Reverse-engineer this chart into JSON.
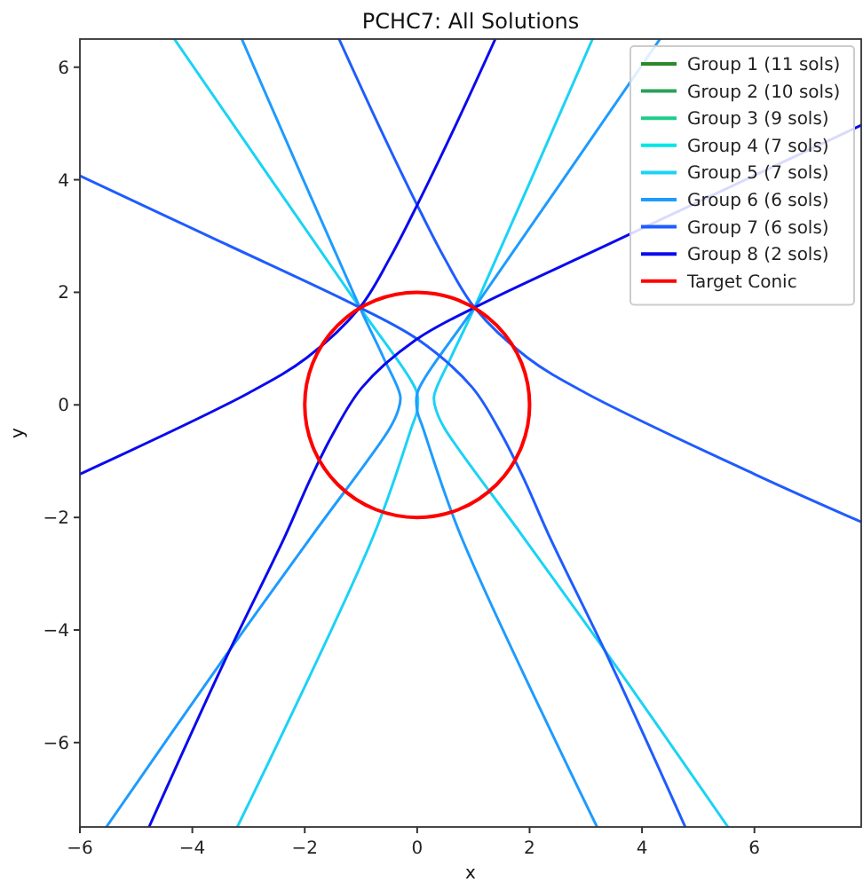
{
  "chart_data": {
    "type": "line",
    "title": "PCHC7: All Solutions",
    "xlabel": "x",
    "ylabel": "y",
    "xlim": [
      -6,
      7.9
    ],
    "ylim": [
      -7.5,
      6.5
    ],
    "xticks": [
      {
        "value": -6,
        "label": "−6"
      },
      {
        "value": -4,
        "label": "−4"
      },
      {
        "value": -2,
        "label": "−2"
      },
      0,
      2,
      4,
      6
    ],
    "yticks": [
      {
        "value": -6,
        "label": "−6"
      },
      {
        "value": -4,
        "label": "−4"
      },
      {
        "value": -2,
        "label": "−2"
      },
      0,
      2,
      4,
      6
    ],
    "legend": "top right",
    "series": [
      {
        "name": "Group 1 (11 sols)",
        "color": "#2a8a2a"
      },
      {
        "name": "Group 2 (10 sols)",
        "color": "#2ca05a"
      },
      {
        "name": "Group 3 (9 sols)",
        "color": "#1fcc8a"
      },
      {
        "name": "Group 4 (7 sols)",
        "color": "#00e6e6"
      },
      {
        "name": "Group 5 (7 sols)",
        "color": "#1ad3f5",
        "x": [
          3.12,
          1.02,
          0.6,
          0.3,
          0.34,
          0.49,
          1.86,
          3.48,
          5.53
        ],
        "values": [
          6.5,
          1.73,
          0.84,
          0.15,
          -0.1,
          -0.42,
          -2.31,
          -4.56,
          -7.5
        ]
      },
      {
        "color": "#1ad3f5",
        "x": [
          -4.32,
          -1.02,
          -0.15,
          0,
          0,
          -0.1,
          -0.77,
          -3.2
        ],
        "values": [
          6.5,
          1.73,
          0.5,
          0.2,
          -0.1,
          -0.4,
          -2.31,
          -7.5
        ]
      },
      {
        "name": "Group 6 (6 sols)",
        "color": "#1e9bff",
        "x": [
          -3.12,
          -1.02,
          -0.6,
          -0.3,
          -0.34,
          -0.49,
          -1.86,
          -3.48,
          -5.53
        ],
        "values": [
          6.5,
          1.73,
          0.84,
          0.15,
          -0.1,
          -0.42,
          -2.31,
          -4.56,
          -7.5
        ]
      },
      {
        "color": "#1e9bff",
        "x": [
          4.32,
          1.02,
          0.15,
          0,
          0,
          0.1,
          0.77,
          3.2
        ],
        "values": [
          6.5,
          1.73,
          0.5,
          0.2,
          -0.1,
          -0.4,
          -2.31,
          -7.5
        ]
      },
      {
        "name": "Group 7 (6 sols)",
        "color": "#1f5cff",
        "x": [
          -6,
          -3.5,
          -1.02,
          0.03,
          0.98,
          1.5,
          1.92,
          2.34,
          3.43,
          4.77
        ],
        "values": [
          4.07,
          2.9,
          1.73,
          1.15,
          0.31,
          -0.52,
          -1.36,
          -2.31,
          -4.56,
          -7.5
        ]
      },
      {
        "color": "#1f5cff",
        "x": [
          7.9,
          6,
          3,
          1.96,
          1.02,
          0.49,
          0,
          -0.7,
          -1.39
        ],
        "values": [
          -2.08,
          -1.23,
          0.21,
          0.84,
          1.73,
          2.6,
          3.55,
          5,
          6.5
        ]
      },
      {
        "name": "Group 8 (2 sols)",
        "color": "#0a0aee",
        "x": [
          -6,
          -3,
          -1.96,
          -1.02,
          -0.49,
          0,
          0.7,
          1.39
        ],
        "values": [
          -1.23,
          0.21,
          0.84,
          1.73,
          2.6,
          3.55,
          5,
          6.5
        ]
      },
      {
        "color": "#0a0aee",
        "x": [
          7.9,
          3.5,
          1.02,
          -0.03,
          -0.98,
          -1.5,
          -1.92,
          -2.34,
          -3.43,
          -4.77
        ],
        "values": [
          4.97,
          2.9,
          1.73,
          1.15,
          0.31,
          -0.52,
          -1.36,
          -2.31,
          -4.56,
          -7.5
        ]
      },
      {
        "name": "Target Conic",
        "color": "#ff0000"
      }
    ]
  }
}
